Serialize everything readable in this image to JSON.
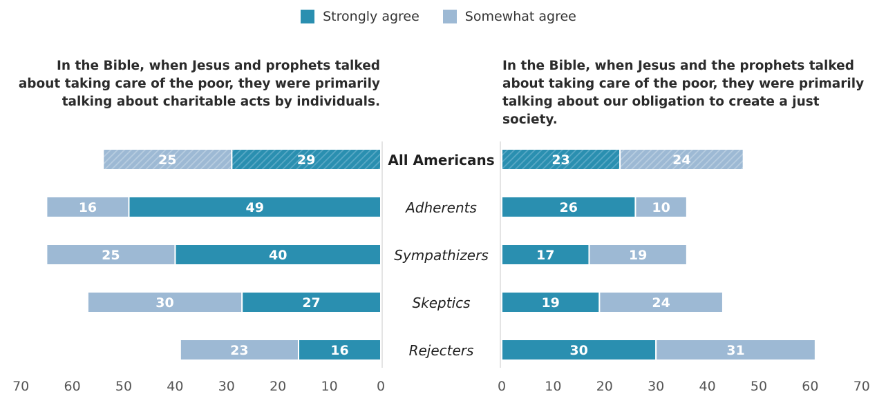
{
  "legend": {
    "strong": {
      "label": "Strongly agree",
      "color": "#2a8fb0"
    },
    "somewhat": {
      "label": "Somewhat agree",
      "color": "#9db9d4"
    }
  },
  "chart_data": {
    "type": "bar",
    "orientation": "horizontal",
    "stacked": true,
    "categories": [
      "All Americans",
      "Adherents",
      "Sympathizers",
      "Skeptics",
      "Rejecters"
    ],
    "xlim": [
      0,
      70
    ],
    "x_ticks": [
      "0",
      "10",
      "20",
      "30",
      "40",
      "50",
      "60",
      "70"
    ],
    "hatched_categories": [
      "All Americans"
    ],
    "panels": [
      {
        "title": [
          "In the Bible, when Jesus and prophets talked",
          "about taking care of the poor, they were primarily",
          "talking about charitable acts by individuals."
        ],
        "direction": "left",
        "series": [
          {
            "name": "Strongly agree",
            "values": [
              29,
              49,
              40,
              27,
              16
            ]
          },
          {
            "name": "Somewhat agree",
            "values": [
              25,
              16,
              25,
              30,
              23
            ]
          }
        ]
      },
      {
        "title": [
          "In the Bible, when Jesus and the prophets talked",
          "about taking care of the poor, they were primarily",
          "talking about our obligation to create a just society."
        ],
        "direction": "right",
        "series": [
          {
            "name": "Strongly agree",
            "values": [
              23,
              26,
              17,
              19,
              30
            ]
          },
          {
            "name": "Somewhat agree",
            "values": [
              24,
              10,
              19,
              24,
              31
            ]
          }
        ]
      }
    ]
  }
}
